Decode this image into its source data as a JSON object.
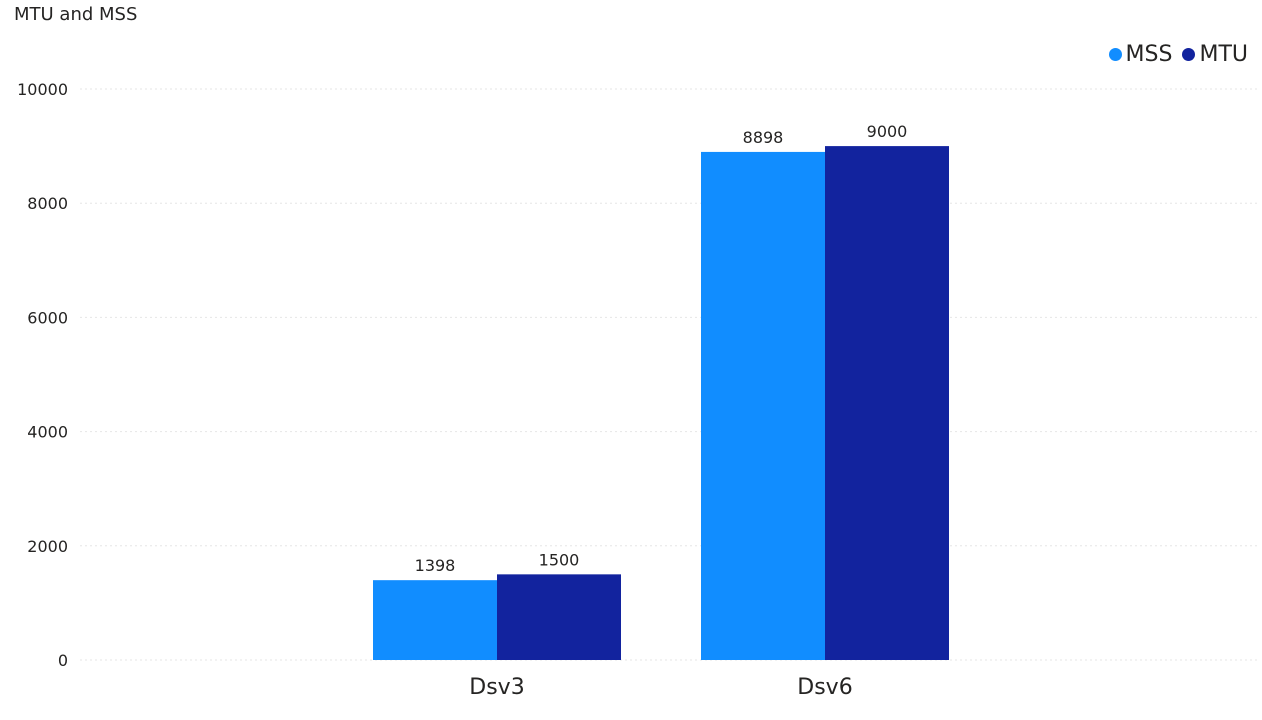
{
  "chart_data": {
    "type": "bar",
    "title": "MTU and MSS",
    "categories": [
      "Dsv3",
      "Dsv6"
    ],
    "series": [
      {
        "name": "MSS",
        "color": "#118DFF",
        "values": [
          1398,
          8898
        ]
      },
      {
        "name": "MTU",
        "color": "#12239E",
        "values": [
          1500,
          9000
        ]
      }
    ],
    "ylim": [
      0,
      10000
    ],
    "yticks": [
      "0",
      "2000",
      "4000",
      "6000",
      "8000",
      "10000"
    ],
    "grid": true,
    "legend": "top-right",
    "xlabel": "",
    "ylabel": ""
  }
}
